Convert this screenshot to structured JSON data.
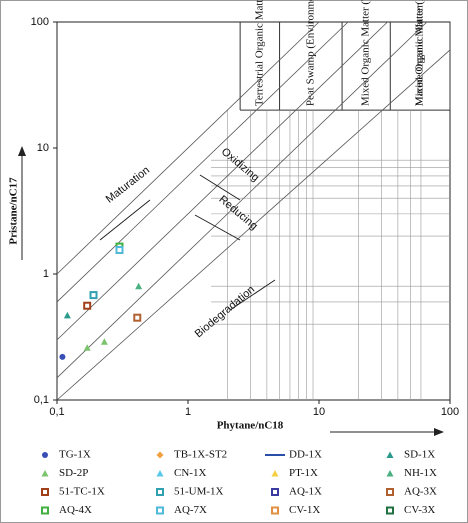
{
  "chart_data": {
    "type": "scatter",
    "x_label": "Phytane/nC18",
    "y_label": "Pristane/nC17",
    "log_x": true,
    "log_y": true,
    "xlim": [
      0.1,
      100
    ],
    "ylim": [
      0.1,
      100
    ],
    "xticks": [
      {
        "value": 0.1,
        "label": "0,1"
      },
      1,
      10,
      100
    ],
    "yticks": [
      {
        "value": 0.1,
        "label": "0,1"
      },
      1,
      10,
      100
    ],
    "headers": [
      "Terrestrial Organic Matter",
      "Peat Swamp (Environment)",
      "Mixed Organic Matter (Transitional)",
      "Mixed Organic Matter (Algal Reducing)",
      "Marine Organic Matter"
    ],
    "annotations": [
      "Maturation",
      "Oxidizing",
      "Reducing",
      "Biodegradation"
    ],
    "series": [
      {
        "name": "TG-1X",
        "color": "#3a4fb5",
        "marker": "circle",
        "x": [
          0.11
        ],
        "values": [
          0.22
        ]
      },
      {
        "name": "TB-1X-ST2",
        "color": "#f0a040",
        "marker": "diamond",
        "x": [],
        "values": []
      },
      {
        "name": "DD-1X",
        "color": "#2a4fa8",
        "marker": "line",
        "x": [],
        "values": []
      },
      {
        "name": "SD-1X",
        "color": "#2a9a8a",
        "marker": "triangle",
        "x": [
          0.12
        ],
        "values": [
          0.47
        ]
      },
      {
        "name": "SD-2P",
        "color": "#7cc36e",
        "marker": "triangle",
        "x": [
          0.17,
          0.23
        ],
        "values": [
          0.26,
          0.29
        ]
      },
      {
        "name": "CN-1X",
        "color": "#58c8e8",
        "marker": "triangle",
        "x": [],
        "values": []
      },
      {
        "name": "PT-1X",
        "color": "#f4d040",
        "marker": "triangle",
        "x": [],
        "values": []
      },
      {
        "name": "NH-1X",
        "color": "#4ab080",
        "marker": "triangle",
        "x": [
          0.42
        ],
        "values": [
          0.8
        ]
      },
      {
        "name": "51-TC-1X",
        "color": "#a0401a",
        "marker": "square",
        "x": [
          0.17
        ],
        "values": [
          0.56
        ]
      },
      {
        "name": "51-UM-1X",
        "color": "#30a0b0",
        "marker": "square",
        "x": [
          0.19
        ],
        "values": [
          0.68
        ]
      },
      {
        "name": "AQ-1X",
        "color": "#3a3aa0",
        "marker": "square",
        "x": [],
        "values": []
      },
      {
        "name": "AQ-3X",
        "color": "#b06030",
        "marker": "square",
        "x": [
          0.41
        ],
        "values": [
          0.45
        ]
      },
      {
        "name": "AQ-4X",
        "color": "#40b040",
        "marker": "square",
        "x": [
          0.3
        ],
        "values": [
          1.65
        ]
      },
      {
        "name": "AQ-7X",
        "color": "#50b8d8",
        "marker": "square",
        "x": [
          0.3
        ],
        "values": [
          1.55
        ]
      },
      {
        "name": "CV-1X",
        "color": "#e09040",
        "marker": "square",
        "x": [],
        "values": []
      },
      {
        "name": "CV-3X",
        "color": "#207040",
        "marker": "square",
        "x": [],
        "values": []
      }
    ]
  }
}
